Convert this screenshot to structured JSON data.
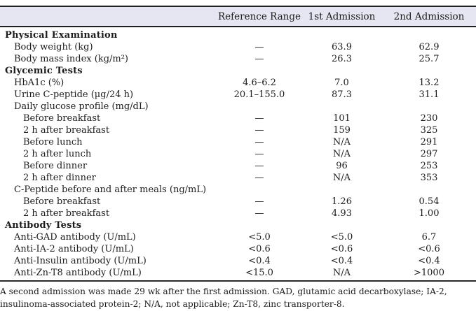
{
  "table": {
    "header": {
      "label": "",
      "reference_range": "Reference Range",
      "first_admission": "1st Admission",
      "second_admission": "2nd Admission"
    },
    "rows": [
      {
        "label": "Physical Examination",
        "type": "section",
        "indent": 0,
        "ref": "",
        "a1": "",
        "a2": ""
      },
      {
        "label": "Body weight (kg)",
        "type": "item",
        "indent": 1,
        "ref": "—",
        "a1": "63.9",
        "a2": "62.9"
      },
      {
        "label": "Body mass index (kg/m²)",
        "type": "item",
        "indent": 1,
        "ref": "—",
        "a1": "26.3",
        "a2": "25.7"
      },
      {
        "label": "Glycemic Tests",
        "type": "section",
        "indent": 0,
        "ref": "",
        "a1": "",
        "a2": ""
      },
      {
        "label": "HbA1c (%)",
        "type": "item",
        "indent": 1,
        "ref": "4.6–6.2",
        "a1": "7.0",
        "a2": "13.2"
      },
      {
        "label": "Urine C-peptide (µg/24 h)",
        "type": "item",
        "indent": 1,
        "ref": "20.1–155.0",
        "a1": "87.3",
        "a2": "31.1"
      },
      {
        "label": "Daily glucose profile (mg/dL)",
        "type": "item",
        "indent": 1,
        "ref": "",
        "a1": "",
        "a2": ""
      },
      {
        "label": "Before breakfast",
        "type": "item",
        "indent": 2,
        "ref": "—",
        "a1": "101",
        "a2": "230"
      },
      {
        "label": "2 h after breakfast",
        "type": "item",
        "indent": 2,
        "ref": "—",
        "a1": "159",
        "a2": "325"
      },
      {
        "label": "Before lunch",
        "type": "item",
        "indent": 2,
        "ref": "—",
        "a1": "N/A",
        "a2": "291"
      },
      {
        "label": "2 h after lunch",
        "type": "item",
        "indent": 2,
        "ref": "—",
        "a1": "N/A",
        "a2": "297"
      },
      {
        "label": "Before dinner",
        "type": "item",
        "indent": 2,
        "ref": "—",
        "a1": "96",
        "a2": "253"
      },
      {
        "label": "2 h after dinner",
        "type": "item",
        "indent": 2,
        "ref": "—",
        "a1": "N/A",
        "a2": "353"
      },
      {
        "label": "C-Peptide before and after meals (ng/mL)",
        "type": "item",
        "indent": 1,
        "ref": "",
        "a1": "",
        "a2": ""
      },
      {
        "label": "Before breakfast",
        "type": "item",
        "indent": 2,
        "ref": "—",
        "a1": "1.26",
        "a2": "0.54"
      },
      {
        "label": "2 h after breakfast",
        "type": "item",
        "indent": 2,
        "ref": "—",
        "a1": "4.93",
        "a2": "1.00"
      },
      {
        "label": "Antibody Tests",
        "type": "section",
        "indent": 0,
        "ref": "",
        "a1": "",
        "a2": ""
      },
      {
        "label": "Anti-GAD antibody (U/mL)",
        "type": "item",
        "indent": 1,
        "ref": "<5.0",
        "a1": "<5.0",
        "a2": "6.7"
      },
      {
        "label": "Anti-IA-2 antibody (U/mL)",
        "type": "item",
        "indent": 1,
        "ref": "<0.6",
        "a1": "<0.6",
        "a2": "<0.6"
      },
      {
        "label": "Anti-Insulin antibody (U/mL)",
        "type": "item",
        "indent": 1,
        "ref": "<0.4",
        "a1": "<0.4",
        "a2": "<0.4"
      },
      {
        "label": "Anti-Zn-T8 antibody (U/mL)",
        "type": "item",
        "indent": 1,
        "ref": "<15.0",
        "a1": "N/A",
        "a2": ">1000"
      }
    ]
  },
  "footnote": "A second admission was made 29 wk after the first admission. GAD, glutamic acid decarboxylase; IA-2, insulinoma-associated protein-2; N/A, not applicable; Zn-T8, zinc transporter-8.",
  "colors": {
    "header_bg": "#e5e6f1",
    "rule": "#1f1f1f",
    "text": "#1c1c1c"
  }
}
